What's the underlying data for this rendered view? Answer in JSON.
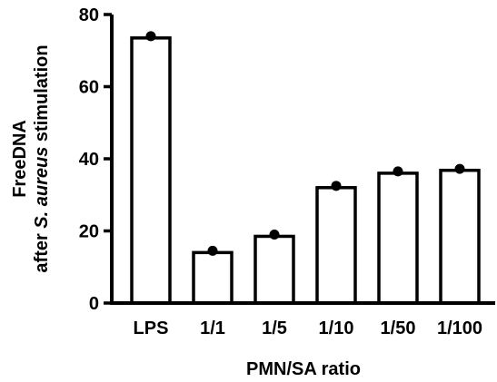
{
  "chart_data": {
    "type": "bar",
    "categories": [
      "LPS",
      "1/1",
      "1/5",
      "1/10",
      "1/50",
      "1/100"
    ],
    "values": [
      73.5,
      14,
      18.5,
      32,
      36,
      36.8
    ],
    "points": [
      74,
      14.5,
      19,
      32.5,
      36.5,
      37.2
    ],
    "title": "",
    "xlabel": "PMN/SA ratio",
    "ylabel": {
      "line1": "FreeDNA",
      "line2_pre": "after ",
      "line2_italic": "S. aureus",
      "line2_post": " stimulation"
    },
    "ylim": [
      0,
      80
    ],
    "yticks": [
      0,
      20,
      40,
      60,
      80
    ],
    "colors": {
      "bar_fill": "#ffffff",
      "stroke": "#000000",
      "point": "#000000"
    }
  }
}
